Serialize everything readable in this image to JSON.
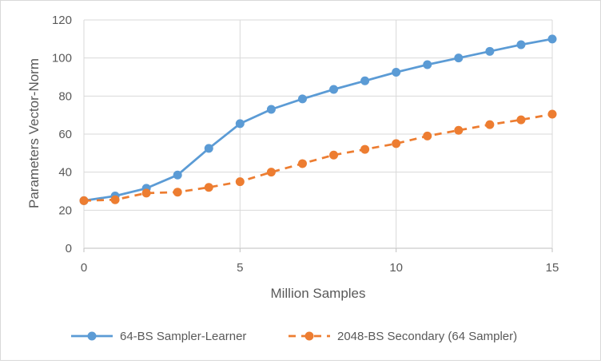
{
  "chart_data": {
    "type": "line",
    "title": "",
    "xlabel": "Million Samples",
    "ylabel": "Parameters Vector-Norm",
    "xlim": [
      0,
      15
    ],
    "ylim": [
      0,
      120
    ],
    "x_ticks": [
      0,
      5,
      10,
      15
    ],
    "y_ticks": [
      0,
      20,
      40,
      60,
      80,
      100,
      120
    ],
    "grid": true,
    "legend_position": "bottom",
    "series": [
      {
        "name": "64-BS Sampler-Learner",
        "color": "#5b9bd5",
        "line_style": "solid",
        "marker": "circle",
        "x": [
          0,
          1,
          2,
          3,
          4,
          5,
          6,
          7,
          8,
          9,
          10,
          11,
          12,
          13,
          14,
          15
        ],
        "values": [
          25,
          27.5,
          31.5,
          38.5,
          52.5,
          65.5,
          73,
          78.5,
          83.5,
          88,
          92.5,
          96.5,
          100,
          103.5,
          107,
          110
        ]
      },
      {
        "name": "2048-BS Secondary (64 Sampler)",
        "color": "#ed7d31",
        "line_style": "dashed",
        "marker": "circle",
        "x": [
          0,
          1,
          2,
          3,
          4,
          5,
          6,
          7,
          8,
          9,
          10,
          11,
          12,
          13,
          14,
          15
        ],
        "values": [
          25,
          25.5,
          29,
          29.5,
          32,
          35,
          40,
          44.5,
          49,
          52,
          55,
          59,
          62,
          65,
          67.5,
          70.5
        ]
      }
    ]
  }
}
